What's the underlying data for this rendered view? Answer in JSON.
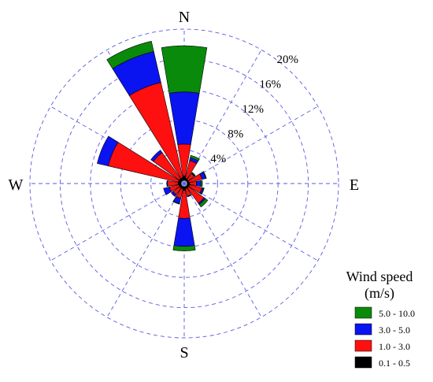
{
  "chart_data": {
    "type": "windrose",
    "directions": [
      "N",
      "NNE",
      "NE",
      "ENE",
      "E",
      "ESE",
      "SE",
      "SSE",
      "S",
      "SSW",
      "SW",
      "WSW",
      "W",
      "WNW",
      "NW",
      "NNW"
    ],
    "direction_labels": {
      "north": "N",
      "east": "E",
      "south": "S",
      "west": "W"
    },
    "radial_ticks": [
      4,
      8,
      12,
      16,
      20
    ],
    "radial_tick_labels": [
      "4%",
      "8%",
      "12%",
      "16%",
      "20%"
    ],
    "radial_max": 20,
    "legend": {
      "title_line1": "Wind speed",
      "title_line2": "(m/s)"
    },
    "series": [
      {
        "name": "0.1 - 0.5",
        "color": "#000000",
        "values": [
          0.6,
          0.3,
          0.2,
          0.2,
          0.3,
          0.3,
          0.3,
          0.3,
          0.5,
          0.3,
          0.3,
          0.3,
          0.4,
          0.4,
          0.4,
          0.4
        ]
      },
      {
        "name": "1.0 - 3.0",
        "color": "#ff1010",
        "values": [
          4.2,
          2.4,
          1.0,
          1.8,
          0.9,
          1.7,
          2.5,
          1.0,
          3.7,
          1.3,
          1.1,
          1.3,
          1.4,
          9.5,
          4.2,
          12.9
        ]
      },
      {
        "name": "3.0 - 5.0",
        "color": "#0a14f0",
        "values": [
          6.9,
          0.4,
          0.1,
          0.5,
          0.6,
          0.2,
          0.2,
          0.1,
          3.7,
          0.7,
          0.3,
          0.8,
          0.1,
          1.5,
          0.4,
          4.2
        ]
      },
      {
        "name": "5.0 - 10.0",
        "color": "#0a8a0a",
        "values": [
          6.1,
          0.3,
          0.1,
          0.1,
          0.2,
          0.1,
          0.4,
          0.0,
          0.6,
          0.1,
          0.0,
          0.0,
          0.0,
          0.0,
          0.0,
          1.4
        ]
      }
    ]
  }
}
